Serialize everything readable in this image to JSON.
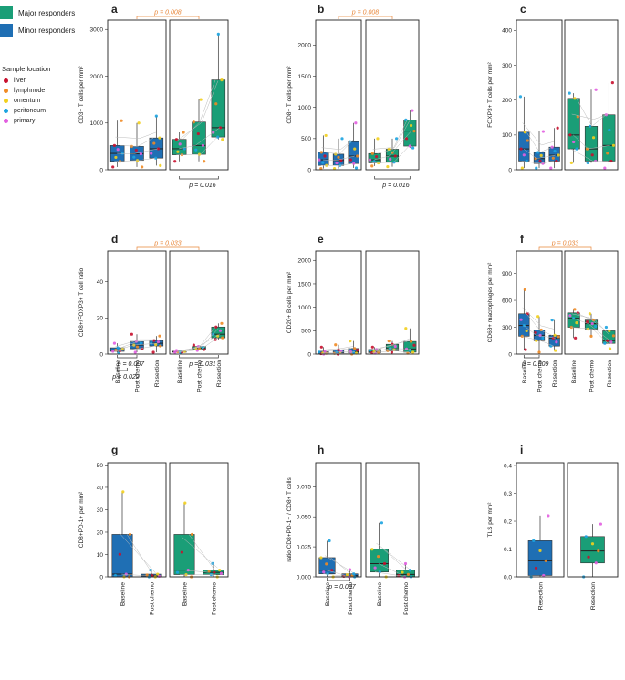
{
  "legend": {
    "groups": [
      {
        "label": "Major responders",
        "color": "#1a9e77"
      },
      {
        "label": "Minor responders",
        "color": "#1f6fb4"
      }
    ],
    "location_title": "Sample location",
    "locations": [
      {
        "label": "liver",
        "color": "#c8102e"
      },
      {
        "label": "lymphnode",
        "color": "#f08a24"
      },
      {
        "label": "omentum",
        "color": "#f2cf1d"
      },
      {
        "label": "peritoneum",
        "color": "#1ba3e0"
      },
      {
        "label": "primary",
        "color": "#e25ee0"
      }
    ]
  },
  "chart_data": [
    {
      "id": "a",
      "type": "box",
      "ylabel": "CD3+ T cells per mm²",
      "ylim": [
        0,
        3200
      ],
      "yticks": [
        0,
        1000,
        2000,
        3000
      ],
      "show_xlabels": false,
      "minor": {
        "categories": [
          "Baseline",
          "Post chemo",
          "Resection"
        ],
        "boxes": [
          [
            60,
            180,
            350,
            520,
            1050
          ],
          [
            60,
            200,
            340,
            500,
            1000
          ],
          [
            90,
            250,
            450,
            680,
            1150
          ]
        ]
      },
      "major": {
        "categories": [
          "Baseline",
          "Post chemo",
          "Resection"
        ],
        "boxes": [
          [
            180,
            320,
            450,
            650,
            800
          ],
          [
            180,
            330,
            520,
            1020,
            1500
          ],
          [
            650,
            700,
            900,
            1920,
            2900
          ]
        ]
      },
      "top_pvalue": "p = 0.008",
      "bottom_pvalues": [
        {
          "label": "p = 0.016",
          "side": "major",
          "from": 0,
          "to": 2
        }
      ]
    },
    {
      "id": "b",
      "type": "box",
      "ylabel": "CD8+ T cells per mm²",
      "ylim": [
        0,
        2400
      ],
      "yticks": [
        0,
        500,
        1000,
        1500,
        2000
      ],
      "show_xlabels": false,
      "minor": {
        "categories": [
          "Baseline",
          "Post chemo",
          "Resection"
        ],
        "boxes": [
          [
            20,
            70,
            160,
            280,
            550
          ],
          [
            20,
            70,
            150,
            250,
            500
          ],
          [
            30,
            100,
            220,
            450,
            750
          ]
        ]
      },
      "major": {
        "categories": [
          "Baseline",
          "Post chemo",
          "Resection"
        ],
        "boxes": [
          [
            60,
            110,
            160,
            260,
            500
          ],
          [
            50,
            120,
            220,
            330,
            500
          ],
          [
            350,
            380,
            620,
            800,
            950
          ]
        ]
      },
      "top_pvalue": "p = 0.008",
      "bottom_pvalues": [
        {
          "label": "p = 0.016",
          "side": "major",
          "from": 0,
          "to": 2
        }
      ]
    },
    {
      "id": "c",
      "type": "box",
      "ylabel": "FOXP3+ T cells per mm²",
      "ylim": [
        0,
        430
      ],
      "yticks": [
        0,
        100,
        200,
        300,
        400
      ],
      "show_xlabels": false,
      "minor": {
        "categories": [
          "Baseline",
          "Post chemo",
          "Resection"
        ],
        "boxes": [
          [
            5,
            25,
            60,
            108,
            210
          ],
          [
            5,
            18,
            32,
            50,
            110
          ],
          [
            5,
            25,
            42,
            65,
            120
          ]
        ]
      },
      "major": {
        "categories": [
          "Baseline",
          "Post chemo",
          "Resection"
        ],
        "boxes": [
          [
            20,
            60,
            100,
            205,
            220
          ],
          [
            20,
            25,
            60,
            125,
            230
          ],
          [
            5,
            25,
            70,
            158,
            250
          ]
        ]
      },
      "top_pvalue": "",
      "bottom_pvalues": []
    },
    {
      "id": "d",
      "type": "box",
      "ylabel": "CD8+/FOXP3+ T cell ratio",
      "ylim": [
        0,
        57
      ],
      "yticks": [
        0,
        20,
        40
      ],
      "show_xlabels": true,
      "minor": {
        "categories": [
          "Baseline",
          "Post chemo",
          "Resection"
        ],
        "boxes": [
          [
            0.5,
            1.5,
            2.2,
            3.5,
            6
          ],
          [
            1,
            3,
            5,
            7,
            11
          ],
          [
            1,
            4.5,
            6,
            7.5,
            10
          ]
        ]
      },
      "major": {
        "categories": [
          "Baseline",
          "Post chemo",
          "Resection"
        ],
        "boxes": [
          [
            0.8,
            1,
            1.3,
            1.6,
            2
          ],
          [
            2,
            2.5,
            3.2,
            4.2,
            5
          ],
          [
            8,
            9,
            11,
            15,
            17
          ]
        ]
      },
      "top_pvalue": "p = 0.033",
      "bottom_pvalues": [
        {
          "label": "p = 0.007",
          "side": "minor",
          "from": 0,
          "to": 1
        },
        {
          "label": "p = 0.022",
          "side": "minor",
          "from": 0,
          "to": 0.5
        },
        {
          "label": "p = 0.031",
          "side": "major",
          "from": 0,
          "to": 2
        }
      ]
    },
    {
      "id": "e",
      "type": "box",
      "ylabel": "CD20+ B cells per mm²",
      "ylim": [
        0,
        2200
      ],
      "yticks": [
        0,
        500,
        1000,
        1500,
        2000
      ],
      "show_xlabels": false,
      "minor": {
        "categories": [
          "Baseline",
          "Post chemo",
          "Resection"
        ],
        "boxes": [
          [
            0,
            10,
            25,
            60,
            150
          ],
          [
            0,
            15,
            40,
            90,
            200
          ],
          [
            0,
            20,
            50,
            120,
            280
          ]
        ]
      },
      "major": {
        "categories": [
          "Baseline",
          "Post chemo",
          "Resection"
        ],
        "boxes": [
          [
            20,
            30,
            50,
            100,
            150
          ],
          [
            40,
            70,
            120,
            210,
            280
          ],
          [
            20,
            40,
            110,
            270,
            550
          ]
        ]
      },
      "top_pvalue": "",
      "bottom_pvalues": []
    },
    {
      "id": "f",
      "type": "box",
      "ylabel": "CD68+ macrophages per mm²",
      "ylim": [
        0,
        1150
      ],
      "yticks": [
        0,
        300,
        600,
        900
      ],
      "show_xlabels": true,
      "minor": {
        "categories": [
          "Baseline",
          "Post chemo",
          "Resection"
        ],
        "boxes": [
          [
            50,
            200,
            320,
            450,
            720
          ],
          [
            20,
            150,
            210,
            270,
            420
          ],
          [
            40,
            90,
            180,
            210,
            380
          ]
        ]
      },
      "major": {
        "categories": [
          "Baseline",
          "Post chemo",
          "Resection"
        ],
        "boxes": [
          [
            180,
            300,
            400,
            460,
            500
          ],
          [
            200,
            280,
            340,
            380,
            450
          ],
          [
            60,
            120,
            150,
            260,
            300
          ]
        ]
      },
      "top_pvalue": "p = 0.033",
      "bottom_pvalues": [
        {
          "label": "p = 0.009",
          "side": "minor",
          "from": 0,
          "to": 1
        }
      ]
    },
    {
      "id": "g",
      "type": "box",
      "ylabel": "CD8+PD-1+ per mm²",
      "ylim": [
        0,
        51
      ],
      "yticks": [
        0,
        10,
        20,
        30,
        40,
        50
      ],
      "show_xlabels": true,
      "minor": {
        "categories": [
          "Baseline",
          "Post chemo"
        ],
        "boxes": [
          [
            0,
            0,
            1.2,
            19,
            38
          ],
          [
            0,
            0,
            0.5,
            1.2,
            3
          ]
        ]
      },
      "major": {
        "categories": [
          "Baseline",
          "Post chemo"
        ],
        "boxes": [
          [
            0,
            1,
            3,
            19,
            33
          ],
          [
            0,
            1,
            2,
            3,
            6
          ]
        ]
      },
      "top_pvalue": "",
      "bottom_pvalues": []
    },
    {
      "id": "h",
      "type": "box",
      "ylabel": "ratio CD8+PD-1+ / CD8+ T cells",
      "ylim": [
        0,
        0.095
      ],
      "yticks": [
        0,
        0.025,
        0.05,
        0.075
      ],
      "ytick_labels": [
        "0.000",
        "0.025",
        "0.050",
        "0.075"
      ],
      "show_xlabels": true,
      "minor": {
        "categories": [
          "Baseline",
          "Post chemo"
        ],
        "boxes": [
          [
            0,
            0.0025,
            0.0055,
            0.016,
            0.03
          ],
          [
            0,
            0,
            0.001,
            0.0025,
            0.006
          ]
        ]
      },
      "major": {
        "categories": [
          "Baseline",
          "Post chemo"
        ],
        "boxes": [
          [
            0,
            0.004,
            0.011,
            0.023,
            0.045
          ],
          [
            0,
            0,
            0.002,
            0.0055,
            0.011
          ]
        ]
      },
      "top_pvalue": "",
      "bottom_pvalues": [
        {
          "label": "p = 0.007",
          "side": "minor",
          "from": 0,
          "to": 1
        }
      ]
    },
    {
      "id": "i",
      "type": "box",
      "ylabel": "TLS per mm²",
      "ylim": [
        0,
        0.41
      ],
      "yticks": [
        0,
        0.1,
        0.2,
        0.3,
        0.4
      ],
      "ytick_labels": [
        "0.0",
        "0.1",
        "0.2",
        "0.3",
        "0.4"
      ],
      "show_xlabels": true,
      "minor": {
        "categories": [
          "Resection"
        ],
        "boxes": [
          [
            0,
            0.005,
            0.058,
            0.13,
            0.22
          ]
        ]
      },
      "major": {
        "categories": [
          "Resection"
        ],
        "boxes": [
          [
            0,
            0.05,
            0.093,
            0.145,
            0.19
          ]
        ]
      },
      "top_pvalue": "",
      "bottom_pvalues": []
    }
  ]
}
